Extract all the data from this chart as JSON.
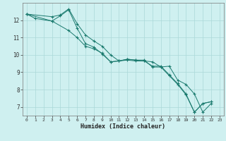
{
  "xlabel": "Humidex (Indice chaleur)",
  "background_color": "#cff0f0",
  "grid_color": "#aad8d8",
  "line_color": "#1a7a6e",
  "xlim": [
    -0.5,
    23.5
  ],
  "ylim": [
    6.5,
    13.0
  ],
  "yticks": [
    7,
    8,
    9,
    10,
    11,
    12
  ],
  "xticks": [
    0,
    1,
    2,
    3,
    4,
    5,
    6,
    7,
    8,
    9,
    10,
    11,
    12,
    13,
    14,
    15,
    16,
    17,
    18,
    19,
    20,
    21,
    22,
    23
  ],
  "series": [
    {
      "x": [
        0,
        1,
        3,
        4,
        5,
        6,
        7,
        8,
        9,
        10,
        11,
        12,
        13,
        14,
        15,
        16,
        17,
        18,
        19,
        20,
        21,
        22
      ],
      "y": [
        12.35,
        12.1,
        11.95,
        12.25,
        12.6,
        11.55,
        10.65,
        10.45,
        10.05,
        9.6,
        9.65,
        9.75,
        9.7,
        9.7,
        9.3,
        9.3,
        8.8,
        8.3,
        7.7,
        6.7,
        7.2,
        7.3
      ]
    },
    {
      "x": [
        0,
        3,
        4,
        5,
        6,
        7,
        8,
        9,
        10,
        11,
        12,
        13,
        14,
        15,
        16,
        17,
        18,
        19,
        20,
        21,
        22
      ],
      "y": [
        12.35,
        12.2,
        12.3,
        12.65,
        11.8,
        11.15,
        10.8,
        10.5,
        10.0,
        9.65,
        9.75,
        9.7,
        9.65,
        9.6,
        9.3,
        9.35,
        8.55,
        8.3,
        7.75,
        6.7,
        7.2
      ]
    },
    {
      "x": [
        0,
        3,
        5,
        6,
        7,
        8,
        9,
        10,
        11,
        12,
        13,
        14,
        15,
        16,
        17,
        18,
        19,
        20,
        21,
        22
      ],
      "y": [
        12.35,
        11.95,
        11.4,
        11.0,
        10.5,
        10.35,
        10.1,
        9.6,
        9.65,
        9.7,
        9.65,
        9.65,
        9.35,
        9.35,
        8.85,
        8.35,
        7.75,
        6.7,
        7.2,
        7.3
      ]
    }
  ]
}
